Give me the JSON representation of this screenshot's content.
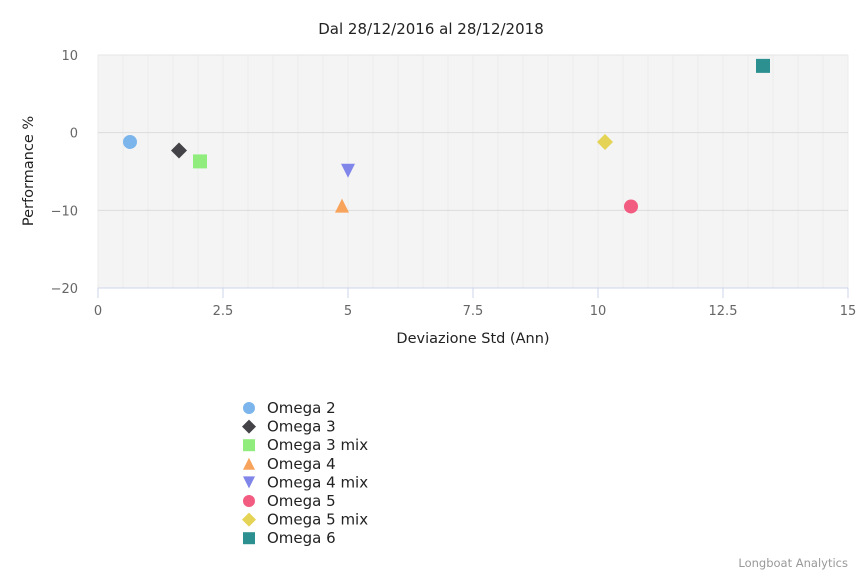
{
  "chart_data": {
    "type": "scatter",
    "title": "Dal 28/12/2016 al 28/12/2018",
    "xlabel": "Deviazione Std (Ann)",
    "ylabel": "Performance %",
    "xlim": [
      0,
      15
    ],
    "ylim": [
      -20,
      10
    ],
    "x_ticks": [
      "0",
      "2.5",
      "5",
      "7.5",
      "10",
      "12.5",
      "15"
    ],
    "y_ticks": [
      "10",
      "0",
      "−10",
      "−20"
    ],
    "grid": true,
    "legend_position": "bottom-left",
    "series": [
      {
        "name": "Omega 2",
        "x": 0.64,
        "y": -1.2,
        "marker": "circle",
        "color": "#7cb5ec"
      },
      {
        "name": "Omega 3",
        "x": 1.62,
        "y": -2.3,
        "marker": "diamond",
        "color": "#434348"
      },
      {
        "name": "Omega 3 mix",
        "x": 2.04,
        "y": -3.7,
        "marker": "square",
        "color": "#90ed7d"
      },
      {
        "name": "Omega 4",
        "x": 4.88,
        "y": -9.4,
        "marker": "triangle",
        "color": "#f7a35c"
      },
      {
        "name": "Omega 4 mix",
        "x": 5.0,
        "y": -4.9,
        "marker": "triangle-down",
        "color": "#8085e9"
      },
      {
        "name": "Omega 5",
        "x": 10.66,
        "y": -9.5,
        "marker": "circle",
        "color": "#f15c80"
      },
      {
        "name": "Omega 5 mix",
        "x": 10.14,
        "y": -1.2,
        "marker": "diamond",
        "color": "#e4d354"
      },
      {
        "name": "Omega 6",
        "x": 13.3,
        "y": 8.6,
        "marker": "square",
        "color": "#2b908f"
      }
    ]
  },
  "credits": "Longboat Analytics"
}
